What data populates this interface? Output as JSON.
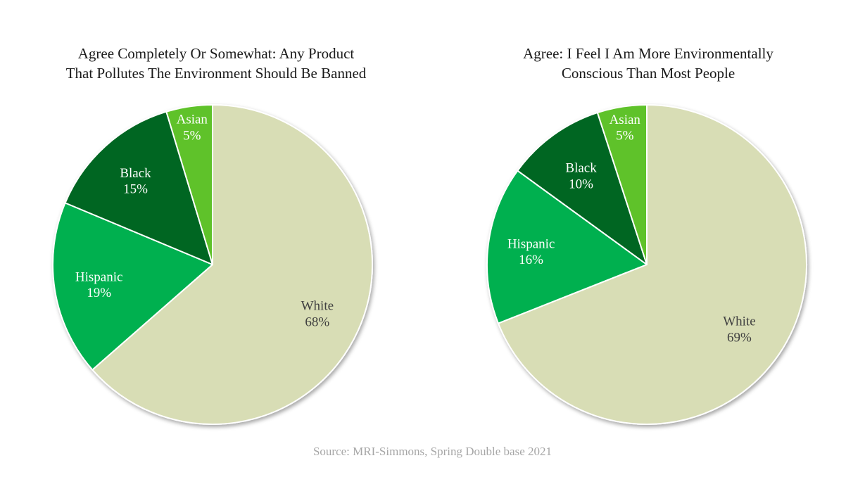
{
  "colors": {
    "White": "#d8ddb5",
    "Hispanic": "#00b050",
    "Black": "#006622",
    "Asian": "#5ec22a",
    "label_light": "#ffffff",
    "label_dark": "#404040",
    "source": "#a6a6a6"
  },
  "chart_data": [
    {
      "type": "pie",
      "title_lines": [
        "Agree Completely Or Somewhat: Any Product",
        "That Pollutes The Environment Should Be Banned"
      ],
      "slices": [
        {
          "label": "White",
          "value": 68,
          "value_label": "68%",
          "color": "#d8ddb5",
          "label_color": "#404040"
        },
        {
          "label": "Hispanic",
          "value": 19,
          "value_label": "19%",
          "color": "#00b050",
          "label_color": "#ffffff"
        },
        {
          "label": "Black",
          "value": 15,
          "value_label": "15%",
          "color": "#006622",
          "label_color": "#ffffff"
        },
        {
          "label": "Asian",
          "value": 5,
          "value_label": "5%",
          "color": "#5ec22a",
          "label_color": "#ffffff"
        }
      ],
      "start": "12 o'clock",
      "direction": "clockwise"
    },
    {
      "type": "pie",
      "title_lines": [
        "Agree: I Feel I Am More Environmentally",
        "Conscious Than Most People"
      ],
      "slices": [
        {
          "label": "White",
          "value": 69,
          "value_label": "69%",
          "color": "#d8ddb5",
          "label_color": "#404040"
        },
        {
          "label": "Hispanic",
          "value": 16,
          "value_label": "16%",
          "color": "#00b050",
          "label_color": "#ffffff"
        },
        {
          "label": "Black",
          "value": 10,
          "value_label": "10%",
          "color": "#006622",
          "label_color": "#ffffff"
        },
        {
          "label": "Asian",
          "value": 5,
          "value_label": "5%",
          "color": "#5ec22a",
          "label_color": "#ffffff"
        }
      ],
      "start": "12 o'clock",
      "direction": "clockwise"
    }
  ],
  "source": "Source: MRI-Simmons, Spring Double base 2021"
}
